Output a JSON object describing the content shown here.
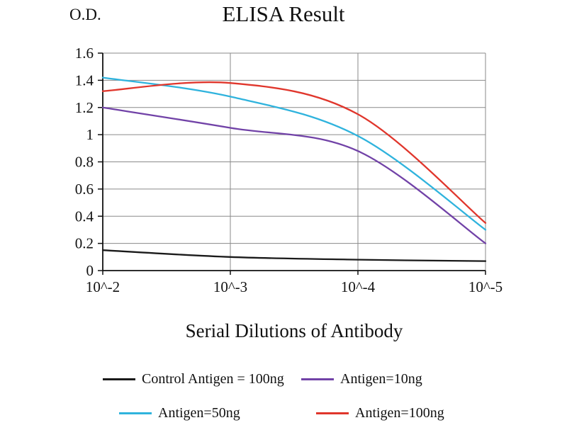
{
  "chart_data": {
    "type": "line",
    "title": "ELISA Result",
    "xlabel": "Serial Dilutions of Antibody",
    "ylabel": "O.D.",
    "x_tick_labels": [
      "10^-2",
      "10^-3",
      "10^-4",
      "10^-5"
    ],
    "y_ticks": [
      0,
      0.2,
      0.4,
      0.6,
      0.8,
      1,
      1.2,
      1.4,
      1.6
    ],
    "y_tick_labels": [
      "0",
      "0.2",
      "0.4",
      "0.6",
      "0.8",
      "1",
      "1.2",
      "1.4",
      "1.6"
    ],
    "ylim": [
      0,
      1.6
    ],
    "grid": true,
    "legend_position": "bottom",
    "series": [
      {
        "name": "Control Antigen = 100ng",
        "color": "#1a1a1a",
        "values": [
          0.15,
          0.1,
          0.08,
          0.07
        ]
      },
      {
        "name": "Antigen=10ng",
        "color": "#7142a7",
        "values": [
          1.2,
          1.05,
          0.88,
          0.2
        ]
      },
      {
        "name": "Antigen=50ng",
        "color": "#2fb3dd",
        "values": [
          1.42,
          1.28,
          0.99,
          0.3
        ]
      },
      {
        "name": "Antigen=100ng",
        "color": "#e0362c",
        "values": [
          1.32,
          1.38,
          1.15,
          0.35
        ]
      }
    ]
  }
}
